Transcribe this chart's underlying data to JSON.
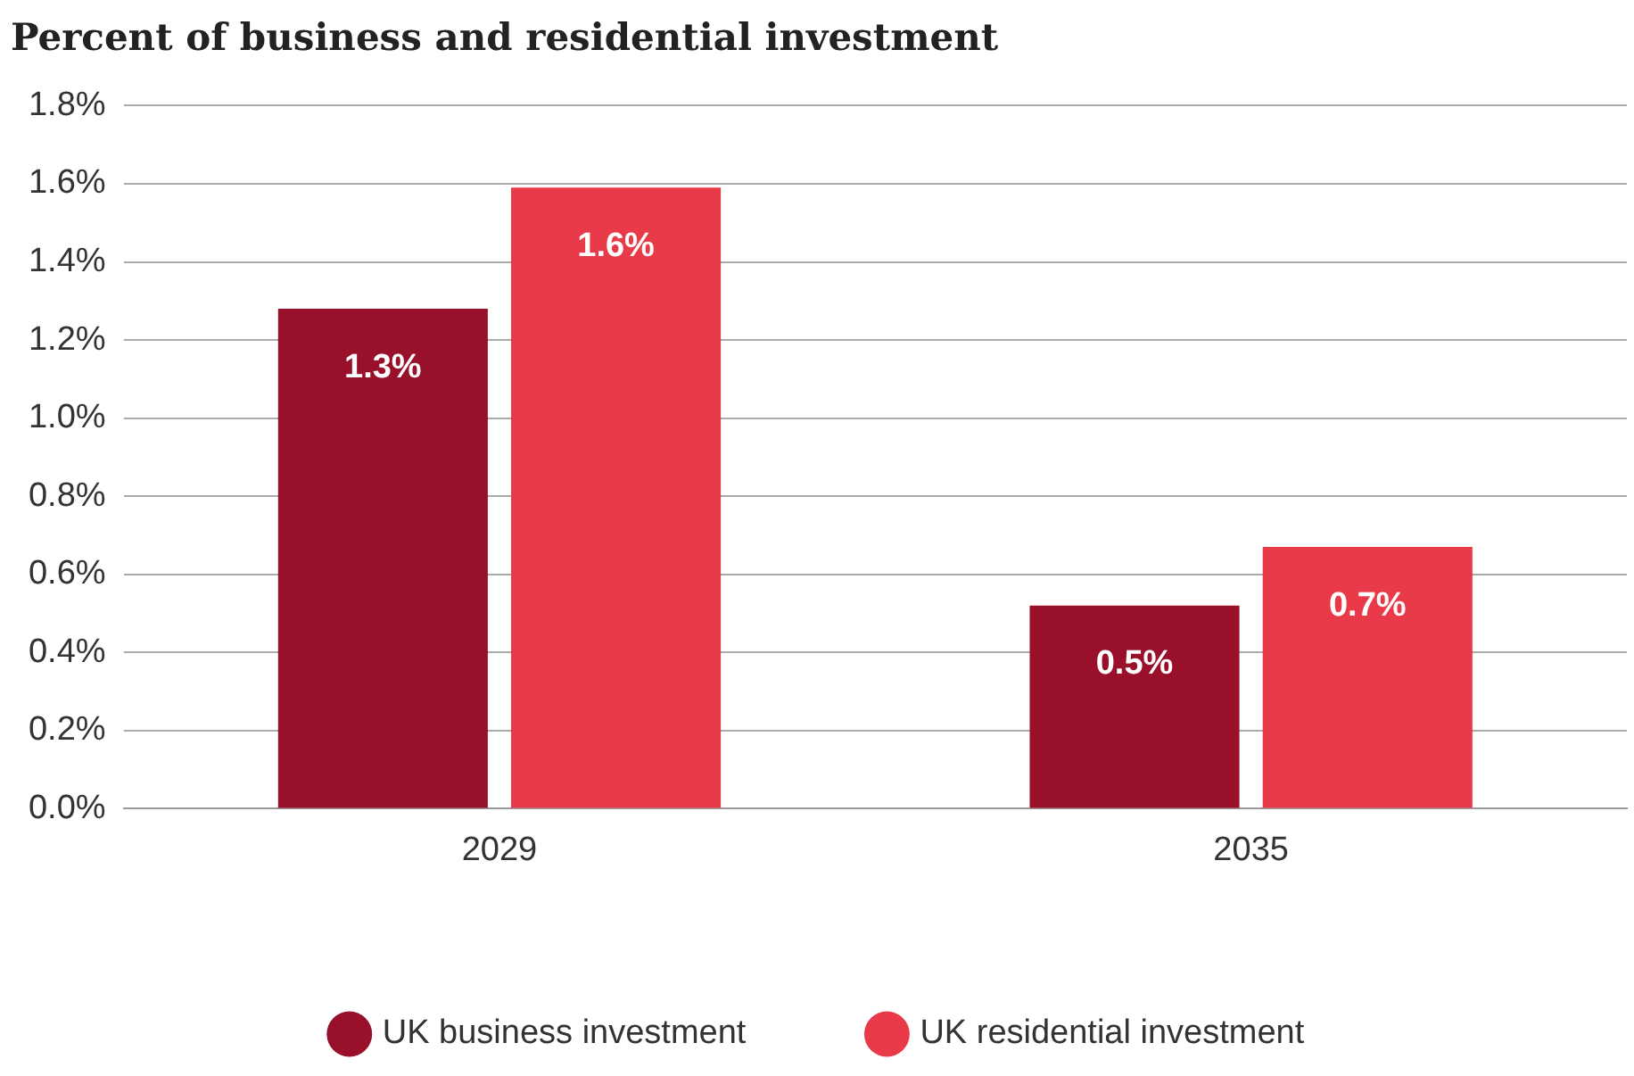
{
  "chart_data": {
    "type": "bar",
    "title": "Percent of business and residential investment",
    "categories": [
      "2029",
      "2035"
    ],
    "series": [
      {
        "name": "UK business investment",
        "color": "#98102a",
        "values": [
          1.28,
          0.52
        ],
        "value_labels": [
          "1.3%",
          "0.5%"
        ]
      },
      {
        "name": "UK residential investment",
        "color": "#e83a48",
        "values": [
          1.59,
          0.67
        ],
        "value_labels": [
          "1.6%",
          "0.7%"
        ]
      }
    ],
    "ylim": [
      0,
      1.8
    ],
    "yticks": [
      {
        "value": 0,
        "label": "0.0%"
      },
      {
        "value": 0.2,
        "label": "0.2%"
      },
      {
        "value": 0.4,
        "label": "0.4%"
      },
      {
        "value": 0.6,
        "label": "0.6%"
      },
      {
        "value": 0.8,
        "label": "0.8%"
      },
      {
        "value": 1.0,
        "label": "1.0%"
      },
      {
        "value": 1.2,
        "label": "1.2%"
      },
      {
        "value": 1.4,
        "label": "1.4%"
      },
      {
        "value": 1.6,
        "label": "1.6%"
      },
      {
        "value": 1.8,
        "label": "1.8%"
      }
    ],
    "grid": "y",
    "legend": "bottom"
  }
}
